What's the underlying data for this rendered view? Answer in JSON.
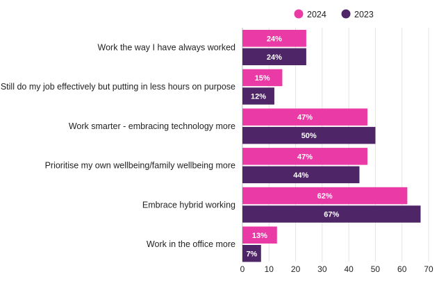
{
  "chart_data": {
    "type": "bar",
    "orientation": "horizontal",
    "categories": [
      "Work the way I have always worked",
      "Still do my job effectively but putting in less hours on purpose",
      "Work smarter - embracing technology more",
      "Prioritise my own wellbeing/family wellbeing more",
      "Embrace hybrid working",
      "Work in the office more"
    ],
    "series": [
      {
        "name": "2024",
        "color": "#e93aa6",
        "values": [
          24,
          15,
          47,
          47,
          62,
          13
        ],
        "labels": [
          "24%",
          "15%",
          "47%",
          "47%",
          "62%",
          "13%"
        ]
      },
      {
        "name": "2023",
        "color": "#4e2566",
        "values": [
          24,
          12,
          50,
          44,
          67,
          7
        ],
        "labels": [
          "24%",
          "12%",
          "50%",
          "44%",
          "67%",
          "7%"
        ]
      }
    ],
    "xlim": [
      0,
      70
    ],
    "xticks": [
      "0",
      "10",
      "20",
      "30",
      "40",
      "50",
      "60",
      "70"
    ],
    "title": "",
    "xlabel": "",
    "ylabel": "",
    "grid": true,
    "legend_position": "top-right"
  }
}
